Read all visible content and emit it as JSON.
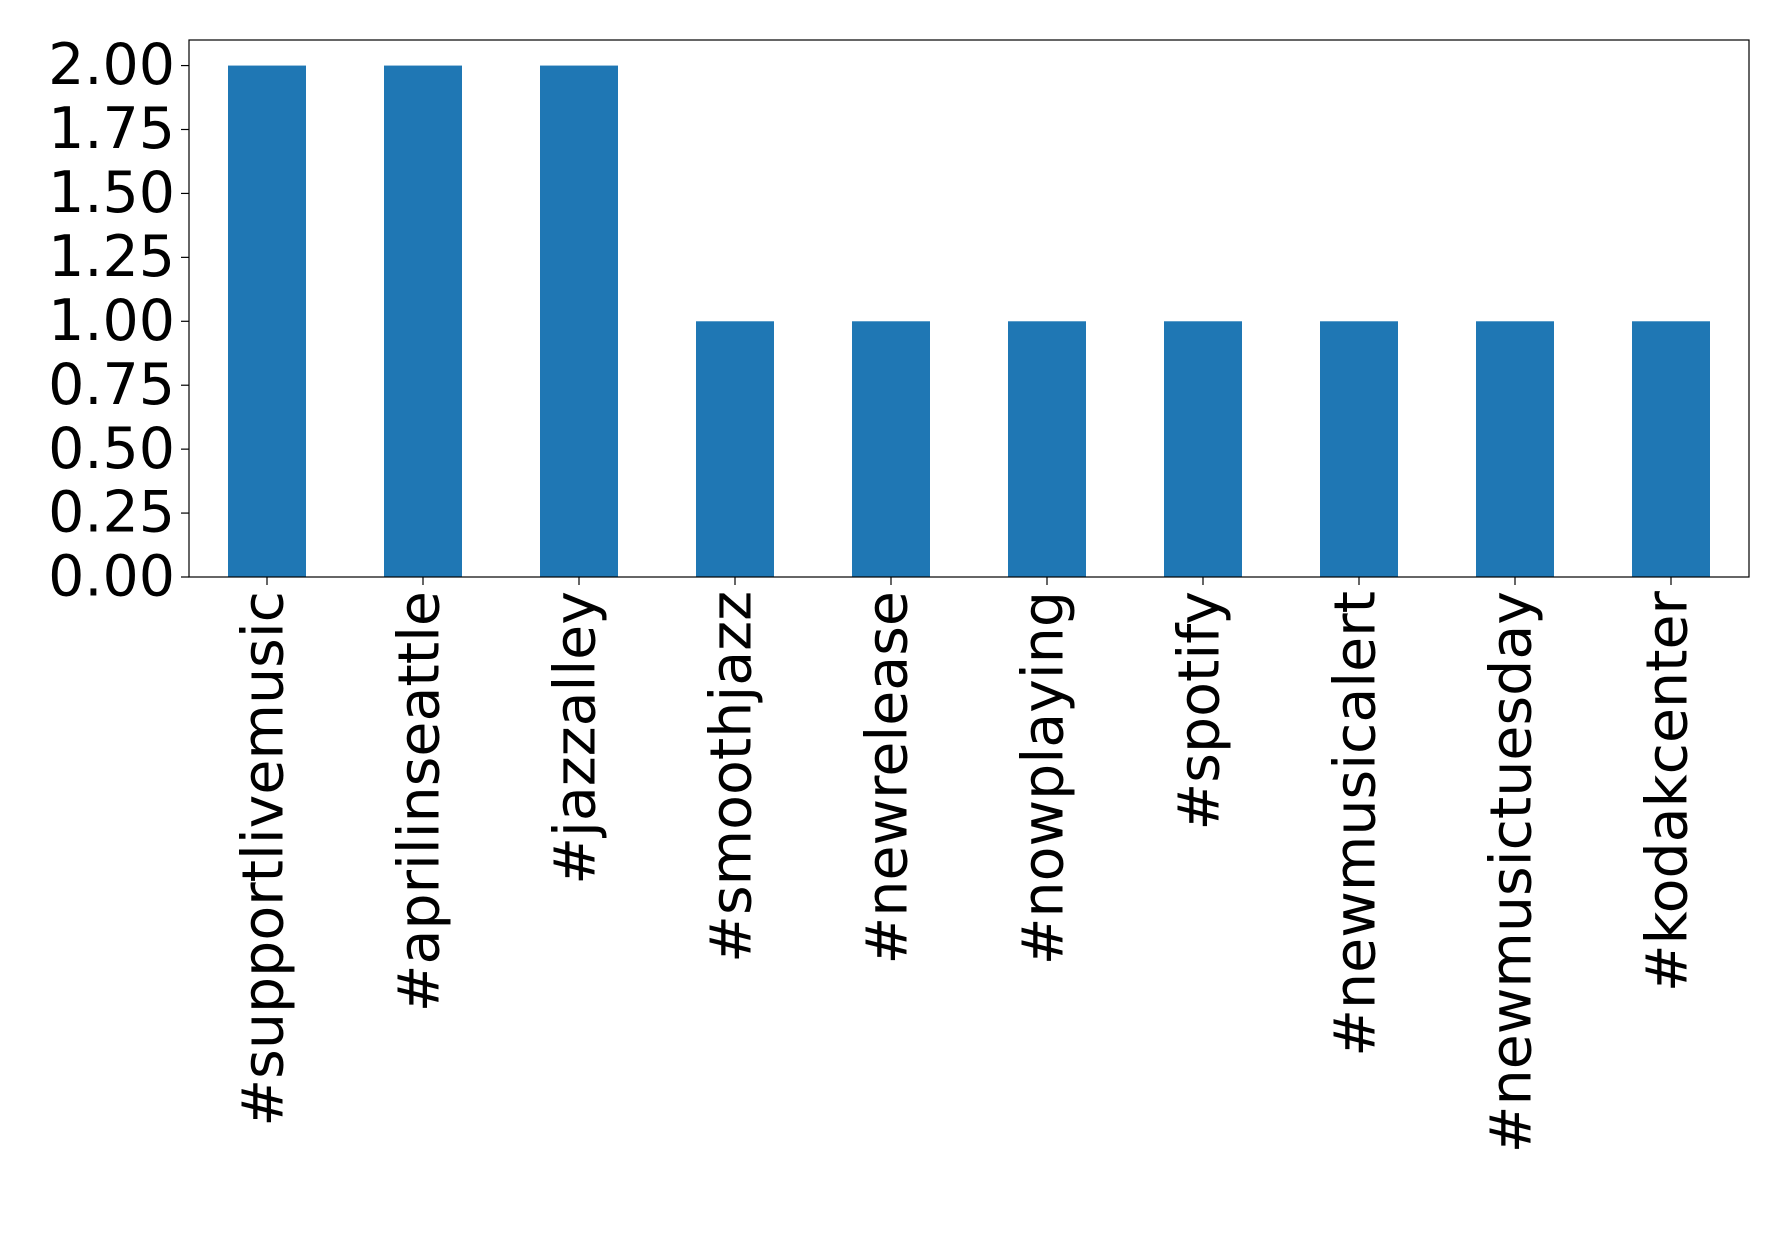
{
  "chart_data": {
    "type": "bar",
    "categories": [
      "#supportlivemusic",
      "#aprilinseattle",
      "#jazzalley",
      "#smoothjazz",
      "#newrelease",
      "#nowplaying",
      "#spotify",
      "#newmusicalert",
      "#newmusictuesday",
      "#kodakcenter"
    ],
    "values": [
      2,
      2,
      2,
      1,
      1,
      1,
      1,
      1,
      1,
      1
    ],
    "color": "#1f77b4",
    "ylim": [
      0,
      2.1
    ],
    "yticks": [
      {
        "value": 0,
        "label": "0.00"
      },
      {
        "value": 0.25,
        "label": "0.25"
      },
      {
        "value": 0.5,
        "label": "0.50"
      },
      {
        "value": 0.75,
        "label": "0.75"
      },
      {
        "value": 1,
        "label": "1.00"
      },
      {
        "value": 1.25,
        "label": "1.25"
      },
      {
        "value": 1.5,
        "label": "1.50"
      },
      {
        "value": 1.75,
        "label": "1.75"
      },
      {
        "value": 2,
        "label": "2.00"
      }
    ],
    "grid": false
  }
}
